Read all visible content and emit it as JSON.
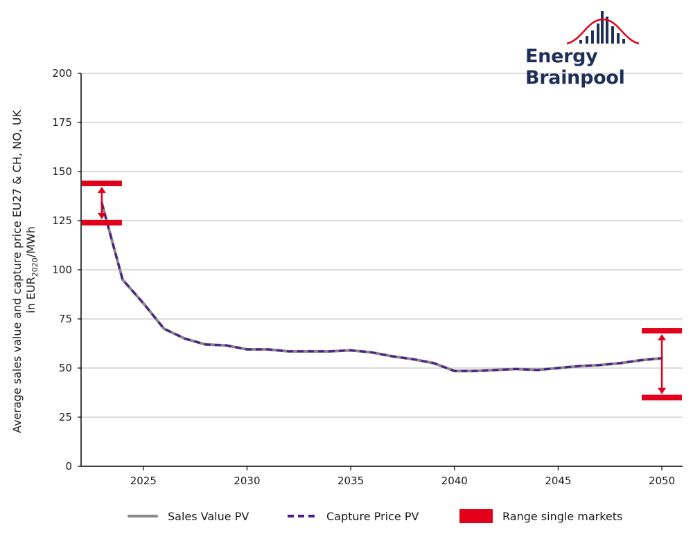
{
  "logo": {
    "name": "Energy Brainpool",
    "icon": "bar-bell-curve-logo-icon"
  },
  "colors": {
    "sales": "#888888",
    "capture": "#4b1d8f",
    "range": "#e2001a",
    "grid": "#c8c8c8",
    "logo_text": "#1f2f57",
    "logo_bars": "#1f2f57",
    "logo_curve": "#e2001a"
  },
  "chart_data": {
    "type": "line",
    "ylabel_line1": "Average sales value and capture price EU27 & CH, NO, UK",
    "ylabel_line2_prefix": "in EUR",
    "ylabel_line2_sub": "2020",
    "ylabel_line2_suffix": "/MWh",
    "xlim": [
      2022,
      2051
    ],
    "ylim": [
      0,
      200
    ],
    "x_ticks": [
      2025,
      2030,
      2035,
      2040,
      2045,
      2050
    ],
    "y_ticks": [
      0,
      25,
      50,
      75,
      100,
      125,
      150,
      175,
      200
    ],
    "grid": "horizontal",
    "legend_position": "bottom",
    "x": [
      2023,
      2024,
      2025,
      2026,
      2027,
      2028,
      2029,
      2030,
      2031,
      2032,
      2033,
      2034,
      2035,
      2036,
      2037,
      2038,
      2039,
      2040,
      2041,
      2042,
      2043,
      2044,
      2045,
      2046,
      2047,
      2048,
      2049,
      2050
    ],
    "series": [
      {
        "name": "Sales Value PV",
        "style": "solid",
        "values": [
          134,
          95,
          83,
          70,
          65,
          62,
          61.5,
          59.5,
          59.5,
          58.5,
          58.5,
          58.5,
          59,
          58,
          56,
          54.5,
          52.5,
          48.5,
          48.5,
          49,
          49.5,
          49,
          50,
          51,
          51.5,
          52.5,
          54,
          55
        ]
      },
      {
        "name": "Capture Price PV",
        "style": "dashed",
        "values": [
          134,
          95,
          83,
          70,
          65,
          62,
          61.5,
          59.5,
          59.5,
          58.5,
          58.5,
          58.5,
          59,
          58,
          56,
          54.5,
          52.5,
          48.5,
          48.5,
          49,
          49.5,
          49,
          50,
          51,
          51.5,
          52.5,
          54,
          55
        ]
      }
    ],
    "ranges": [
      {
        "name": "Range single markets",
        "x": 2023,
        "low": 124,
        "high": 144
      },
      {
        "name": "Range single markets",
        "x": 2050,
        "low": 35,
        "high": 69
      }
    ],
    "legend": [
      "Sales Value PV",
      "Capture Price PV",
      "Range single markets"
    ]
  }
}
